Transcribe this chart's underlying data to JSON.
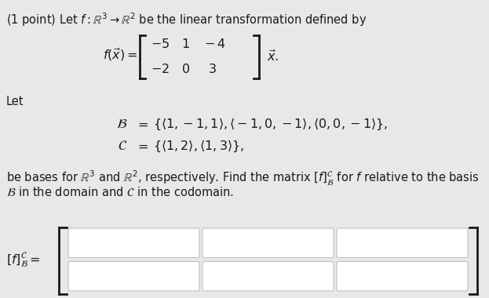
{
  "bg_color": "#e8e8e8",
  "text_color": "#1a1a1a",
  "box_color": "#ffffff",
  "box_border": "#c0c0c0",
  "fs_main": 10.5,
  "fs_math": 11.5,
  "title": "(1 point) Let $f : \\mathbb{R}^3 \\rightarrow \\mathbb{R}^2$ be the linear transformation defined by",
  "matrix_lhs": "$f(\\vec{x}) = $",
  "matrix_row1": "$-5 \\hspace{8pt} 1 \\hspace{8pt} -4$",
  "matrix_row2": "$-2 \\hspace{8pt} 0 \\hspace{14pt} 3$",
  "matrix_rhs": "$\\vec{x}.$",
  "let": "Let",
  "B_label": "$\\mathcal{B}$",
  "B_eq": "$= \\;\\; \\{\\langle 1,-1,1\\rangle, \\langle -1,0,-1\\rangle, \\langle 0,0,-1\\rangle\\},$",
  "C_label": "$\\mathcal{C}$",
  "C_eq": "$= \\;\\; \\{\\langle 1,2\\rangle, \\langle 1,3\\rangle\\},$",
  "body1": "be bases for $\\mathbb{R}^3$ and $\\mathbb{R}^2$, respectively. Find the matrix $[f]^{\\mathcal{C}}_{\\mathcal{B}}$ for $f$ relative to the basis",
  "body2": "$\\mathcal{B}$ in the domain and $\\mathcal{C}$ in the codomain.",
  "ans_label": "$[f]^{\\mathcal{C}}_{\\mathcal{B}} = $"
}
